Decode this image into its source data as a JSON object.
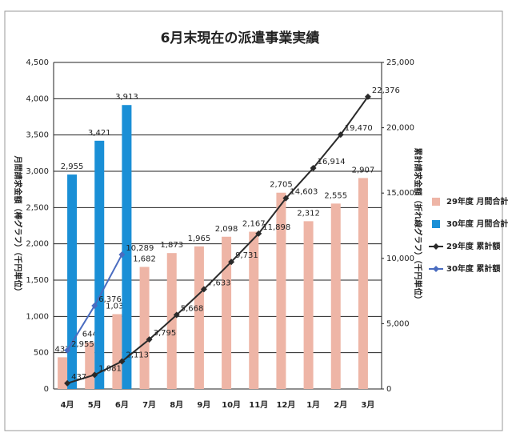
{
  "chart_data": {
    "type": "bar",
    "title": "6月末現在の派遣事業実績",
    "y_label": "月間請求金額（棒グラフ）（千円単位）",
    "y2_label": "累計請求金額（折れ線グラフ）（千円単位）",
    "categories": [
      "4月",
      "5月",
      "6月",
      "7月",
      "8月",
      "9月",
      "10月",
      "11月",
      "12月",
      "1月",
      "2月",
      "3月"
    ],
    "ylim": [
      0,
      4500
    ],
    "yticks": [
      0,
      500,
      {
        "value": 1000,
        "label": "1,000"
      },
      {
        "value": 1500,
        "label": "1,500"
      },
      {
        "value": 2000,
        "label": "2,000"
      },
      {
        "value": 2500,
        "label": "2,500"
      },
      {
        "value": 3000,
        "label": "3,000"
      },
      {
        "value": 3500,
        "label": "3,500"
      },
      {
        "value": 4000,
        "label": "4,000"
      },
      {
        "value": 4500,
        "label": "4,500"
      }
    ],
    "y2lim": [
      0,
      25000
    ],
    "y2ticks": [
      0,
      {
        "value": 5000,
        "label": "5,000"
      },
      {
        "value": 10000,
        "label": "10,000"
      },
      {
        "value": 15000,
        "label": "15,000"
      },
      {
        "value": 20000,
        "label": "20,000"
      },
      {
        "value": 25000,
        "label": "25,000"
      }
    ],
    "grid": true,
    "legend": "right",
    "series": [
      {
        "name": "29年度 月間合計",
        "type": "bar",
        "color": "#eeb5a6",
        "values": [
          437,
          644,
          1031,
          1682,
          1873,
          1965,
          2098,
          2167,
          2705,
          2312,
          2555,
          2907
        ],
        "value_labels": [
          "437",
          "644",
          "1,031",
          "1,682",
          "1,873",
          "1,965",
          "2,098",
          "2,167",
          "2,705",
          "2,312",
          "2,555",
          "2,907"
        ]
      },
      {
        "name": "30年度 月間合計",
        "type": "bar",
        "color": "#1a8fd6",
        "values": [
          2955,
          3421,
          3913,
          null,
          null,
          null,
          null,
          null,
          null,
          null,
          null,
          null
        ],
        "value_labels": [
          "2,955",
          "3,421",
          "3,913",
          null,
          null,
          null,
          null,
          null,
          null,
          null,
          null,
          null
        ]
      },
      {
        "name": "29年度 累計額",
        "type": "line",
        "axis": "y2",
        "color": "#2a2a2a",
        "values": [
          437,
          1081,
          2113,
          3795,
          5668,
          7633,
          9731,
          11898,
          14603,
          16914,
          19470,
          22376
        ],
        "value_labels": [
          "437",
          "1,081",
          "2,113",
          "3,795",
          "5,668",
          "7,633",
          "9,731",
          "11,898",
          "14,603",
          "16,914",
          "19,470",
          "22,376"
        ]
      },
      {
        "name": "30年度 累計額",
        "type": "line",
        "axis": "y2",
        "color": "#4a6cc0",
        "values": [
          2955,
          6376,
          10289,
          null,
          null,
          null,
          null,
          null,
          null,
          null,
          null,
          null
        ],
        "value_labels": [
          "2,955",
          "6,376",
          "10,289",
          null,
          null,
          null,
          null,
          null,
          null,
          null,
          null,
          null
        ]
      }
    ]
  }
}
